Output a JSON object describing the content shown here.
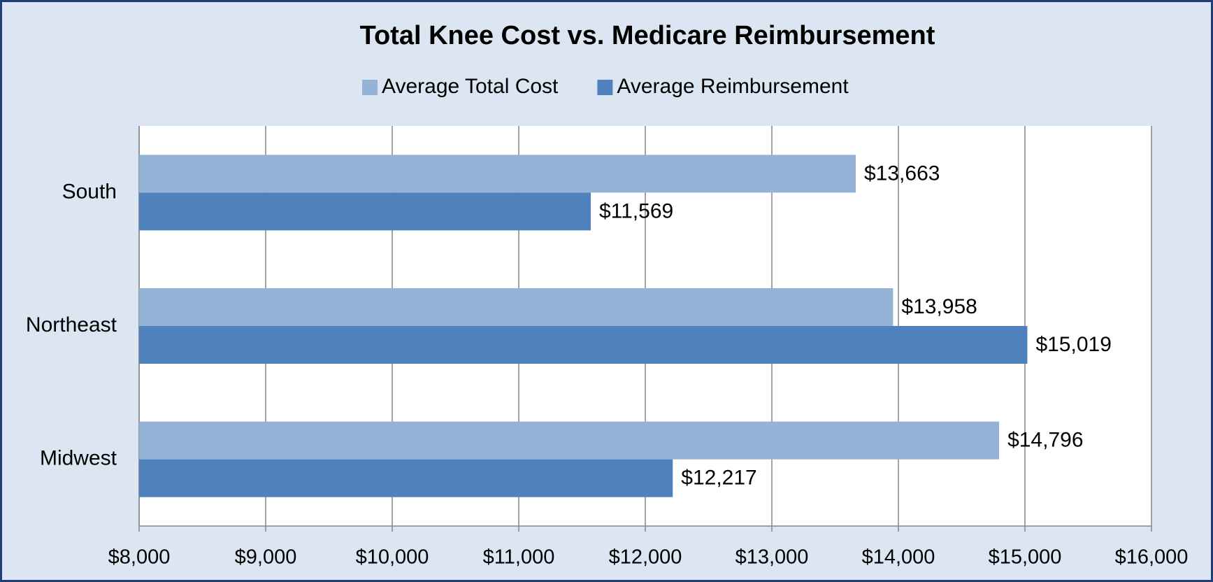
{
  "chart_data": {
    "type": "hbar",
    "title": "Total Knee Cost vs. Medicare Reimbursement",
    "categories": [
      "South",
      "Northeast",
      "Midwest"
    ],
    "series": [
      {
        "name": "Average Total Cost",
        "color": "#95b3d7",
        "values": [
          13663,
          13958,
          14796
        ],
        "value_labels": [
          "$13,663",
          "$13,958",
          "$14,796"
        ]
      },
      {
        "name": "Average Reimbursement",
        "color": "#4f81bd",
        "values": [
          11569,
          15019,
          12217
        ],
        "value_labels": [
          "$11,569",
          "$15,019",
          "$12,217"
        ]
      }
    ],
    "xlim": [
      8000,
      16000
    ],
    "xticks": [
      {
        "value": 8000,
        "label": "$8,000"
      },
      {
        "value": 9000,
        "label": "$9,000"
      },
      {
        "value": 10000,
        "label": "$10,000"
      },
      {
        "value": 11000,
        "label": "$11,000"
      },
      {
        "value": 12000,
        "label": "$12,000"
      },
      {
        "value": 13000,
        "label": "$13,000"
      },
      {
        "value": 14000,
        "label": "$14,000"
      },
      {
        "value": 15000,
        "label": "$15,000"
      },
      {
        "value": 16000,
        "label": "$16,000"
      }
    ],
    "grid": true,
    "legend": "top"
  }
}
